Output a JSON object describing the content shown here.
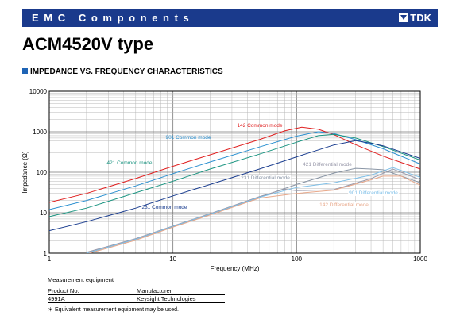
{
  "header": {
    "brand_title": "EMC Components",
    "logo_text": "TDK"
  },
  "page_title": "ACM4520V type",
  "section_title": "IMPEDANCE VS. FREQUENCY CHARACTERISTICS",
  "chart_data": {
    "type": "line",
    "xlabel": "Frequency (MHz)",
    "ylabel": "Impedance (Ω)",
    "xscale": "log",
    "yscale": "log",
    "xlim": [
      1,
      1000
    ],
    "ylim": [
      1,
      10000
    ],
    "x_tick_labels": [
      "1",
      "10",
      "100",
      "1000"
    ],
    "y_tick_labels": [
      "1",
      "10",
      "100",
      "1000",
      "10000"
    ],
    "grid": true,
    "legend": "inline labels",
    "series": [
      {
        "name": "142 Common mode",
        "color": "#e02020",
        "points": [
          [
            1,
            18
          ],
          [
            2,
            30
          ],
          [
            5,
            70
          ],
          [
            10,
            140
          ],
          [
            20,
            270
          ],
          [
            50,
            640
          ],
          [
            80,
            1050
          ],
          [
            110,
            1300
          ],
          [
            150,
            1150
          ],
          [
            200,
            850
          ],
          [
            300,
            480
          ],
          [
            500,
            250
          ],
          [
            1000,
            120
          ]
        ]
      },
      {
        "name": "901 Common mode",
        "color": "#2b90d0",
        "points": [
          [
            1,
            12
          ],
          [
            2,
            20
          ],
          [
            5,
            46
          ],
          [
            10,
            92
          ],
          [
            20,
            180
          ],
          [
            50,
            420
          ],
          [
            100,
            780
          ],
          [
            150,
            1000
          ],
          [
            200,
            900
          ],
          [
            300,
            640
          ],
          [
            500,
            380
          ],
          [
            1000,
            160
          ]
        ]
      },
      {
        "name": "421 Common mode",
        "color": "#1a9480",
        "points": [
          [
            1,
            8
          ],
          [
            2,
            13
          ],
          [
            5,
            31
          ],
          [
            10,
            60
          ],
          [
            20,
            120
          ],
          [
            50,
            280
          ],
          [
            100,
            550
          ],
          [
            150,
            800
          ],
          [
            200,
            860
          ],
          [
            300,
            700
          ],
          [
            500,
            430
          ],
          [
            1000,
            200
          ]
        ]
      },
      {
        "name": "231 Common mode",
        "color": "#1a3d8f",
        "points": [
          [
            1,
            3.6
          ],
          [
            2,
            6
          ],
          [
            5,
            13
          ],
          [
            10,
            26
          ],
          [
            20,
            50
          ],
          [
            50,
            120
          ],
          [
            100,
            240
          ],
          [
            200,
            470
          ],
          [
            300,
            600
          ],
          [
            400,
            520
          ],
          [
            500,
            450
          ],
          [
            1000,
            220
          ]
        ]
      },
      {
        "name": "231 Differential mode",
        "color": "#8a96a6",
        "points": [
          [
            2,
            1
          ],
          [
            5,
            2.2
          ],
          [
            10,
            4.5
          ],
          [
            20,
            9
          ],
          [
            50,
            24
          ],
          [
            100,
            50
          ],
          [
            200,
            95
          ],
          [
            300,
            125
          ],
          [
            400,
            120
          ],
          [
            500,
            115
          ],
          [
            1000,
            55
          ]
        ]
      },
      {
        "name": "421 Differential mode",
        "color": "#9999aa",
        "points": [
          [
            2,
            1.05
          ],
          [
            5,
            2.3
          ],
          [
            10,
            4.7
          ],
          [
            20,
            9.5
          ],
          [
            50,
            25
          ],
          [
            80,
            38
          ],
          [
            100,
            35
          ],
          [
            200,
            37
          ],
          [
            400,
            70
          ],
          [
            600,
            120
          ],
          [
            1000,
            65
          ]
        ]
      },
      {
        "name": "901 Differential mode",
        "color": "#80c0e8",
        "points": [
          [
            2,
            1
          ],
          [
            5,
            2.2
          ],
          [
            10,
            4.6
          ],
          [
            20,
            9.2
          ],
          [
            50,
            24
          ],
          [
            100,
            42
          ],
          [
            200,
            55
          ],
          [
            400,
            85
          ],
          [
            600,
            130
          ],
          [
            1000,
            75
          ]
        ]
      },
      {
        "name": "142 Differential mode",
        "color": "#e8a88a",
        "points": [
          [
            2,
            0.95
          ],
          [
            5,
            2.1
          ],
          [
            10,
            4.4
          ],
          [
            20,
            8.8
          ],
          [
            50,
            23
          ],
          [
            100,
            30
          ],
          [
            200,
            36
          ],
          [
            400,
            65
          ],
          [
            500,
            80
          ],
          [
            700,
            80
          ],
          [
            1000,
            48
          ]
        ]
      }
    ]
  },
  "measurement": {
    "title": "Measurement equipment",
    "headers": [
      "Product No.",
      "Manufacturer"
    ],
    "rows": [
      [
        "4991A",
        "Keysight Technologies"
      ]
    ],
    "note": "＊ Equivalent measurement equipment may be used."
  }
}
